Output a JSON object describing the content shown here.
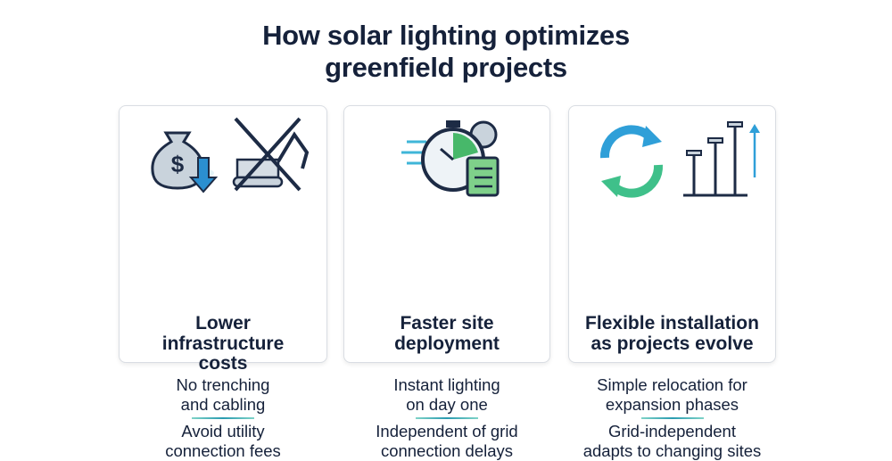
{
  "header": {
    "title": "How solar lighting optimizes greenfield projects"
  },
  "cards": [
    {
      "heading": "Lower infrastructure costs",
      "points": [
        "No trenching and cabling",
        "Avoid utility connection fees"
      ]
    },
    {
      "heading": "Faster site deployment",
      "points": [
        "Instant lighting on day one",
        "Independent of grid connection delays"
      ]
    },
    {
      "heading": "Flexible installation as projects evolve",
      "points": [
        "Simple relocation for expansion phases",
        "Grid-independent adapts to changing sites"
      ]
    }
  ]
}
